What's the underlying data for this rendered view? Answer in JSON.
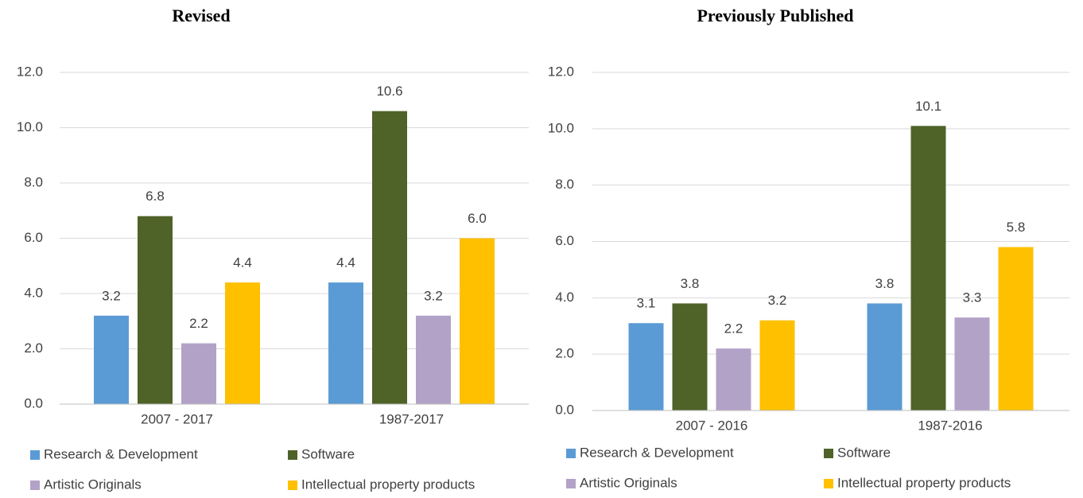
{
  "chart_data": [
    {
      "type": "bar",
      "title": "Revised",
      "categories": [
        "2007 - 2017",
        "1987-2017"
      ],
      "series": [
        {
          "name": "Research & Development",
          "color": "#5b9bd5",
          "values": [
            3.2,
            4.4
          ],
          "value_labels": [
            "3.2",
            "4.4"
          ]
        },
        {
          "name": "Software",
          "color": "#4f6228",
          "values": [
            6.8,
            10.6
          ],
          "value_labels": [
            "6.8",
            "10.6"
          ]
        },
        {
          "name": "Artistic Originals",
          "color": "#b3a2c7",
          "values": [
            2.2,
            3.2
          ],
          "value_labels": [
            "2.2",
            "3.2"
          ]
        },
        {
          "name": "Intellectual property products",
          "color": "#ffc000",
          "values": [
            4.4,
            6.0
          ],
          "value_labels": [
            "4.4",
            "6.0"
          ]
        }
      ],
      "ylim": [
        0,
        12
      ],
      "yticks": [
        {
          "value": 0,
          "label": "0.0"
        },
        {
          "value": 2,
          "label": "2.0"
        },
        {
          "value": 4,
          "label": "4.0"
        },
        {
          "value": 6,
          "label": "6.0"
        },
        {
          "value": 8,
          "label": "8.0"
        },
        {
          "value": 10,
          "label": "10.0"
        },
        {
          "value": 12,
          "label": "12.0"
        }
      ],
      "grid": true,
      "legend": "bottom"
    },
    {
      "type": "bar",
      "title": "Previously Published",
      "categories": [
        "2007 - 2016",
        "1987-2016"
      ],
      "series": [
        {
          "name": "Research & Development",
          "color": "#5b9bd5",
          "values": [
            3.1,
            3.8
          ],
          "value_labels": [
            "3.1",
            "3.8"
          ]
        },
        {
          "name": "Software",
          "color": "#4f6228",
          "values": [
            3.8,
            10.1
          ],
          "value_labels": [
            "3.8",
            "10.1"
          ]
        },
        {
          "name": "Artistic Originals",
          "color": "#b3a2c7",
          "values": [
            2.2,
            3.3
          ],
          "value_labels": [
            "2.2",
            "3.3"
          ]
        },
        {
          "name": "Intellectual property products",
          "color": "#ffc000",
          "values": [
            3.2,
            5.8
          ],
          "value_labels": [
            "3.2",
            "5.8"
          ]
        }
      ],
      "ylim": [
        0,
        12
      ],
      "yticks": [
        {
          "value": 0,
          "label": "0.0"
        },
        {
          "value": 2,
          "label": "2.0"
        },
        {
          "value": 4,
          "label": "4.0"
        },
        {
          "value": 6,
          "label": "6.0"
        },
        {
          "value": 8,
          "label": "8.0"
        },
        {
          "value": 10,
          "label": "10.0"
        },
        {
          "value": 12,
          "label": "12.0"
        }
      ],
      "grid": true,
      "legend": "bottom"
    }
  ]
}
